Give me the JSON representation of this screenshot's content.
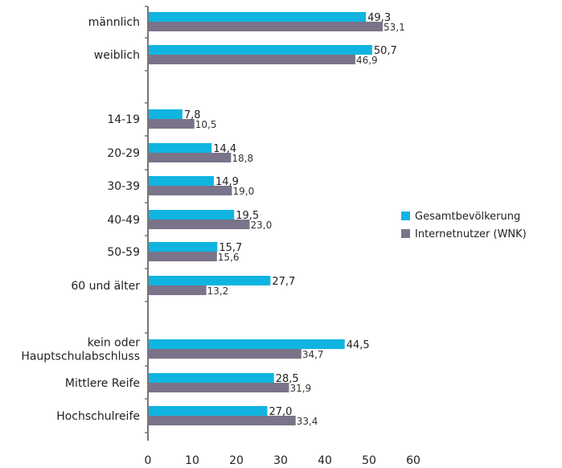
{
  "chart_data": {
    "type": "bar",
    "orientation": "horizontal",
    "categories": [
      "männlich",
      "weiblich",
      "14-19",
      "20-29",
      "30-39",
      "40-49",
      "50-59",
      "60 und älter",
      "kein oder\nHauptschulabschluss",
      "Mittlere Reife",
      "Hochschulreife"
    ],
    "series": [
      {
        "name": "Gesamtbevölkerung",
        "color": "#10b4e0",
        "values": [
          49.3,
          50.7,
          7.8,
          14.4,
          14.9,
          19.5,
          15.7,
          27.7,
          44.5,
          28.5,
          27.0
        ],
        "labels": [
          "49,3",
          "50,7",
          "7,8",
          "14,4",
          "14,9",
          "19,5",
          "15,7",
          "27,7",
          "44,5",
          "28,5",
          "27,0"
        ]
      },
      {
        "name": "Internetnutzer (WNK)",
        "color": "#7b7389",
        "values": [
          53.1,
          46.9,
          10.5,
          18.8,
          19.0,
          23.0,
          15.6,
          13.2,
          34.7,
          31.9,
          33.4
        ],
        "labels": [
          "53,1",
          "46,9",
          "10,5",
          "18,8",
          "19,0",
          "23,0",
          "15,6",
          "13,2",
          "34,7",
          "31,9",
          "33,4"
        ]
      }
    ],
    "xlim": [
      0,
      60
    ],
    "xticks": [
      0,
      10,
      20,
      30,
      40,
      50,
      60
    ],
    "title": "",
    "xlabel": "",
    "ylabel": "",
    "legend": "right"
  }
}
